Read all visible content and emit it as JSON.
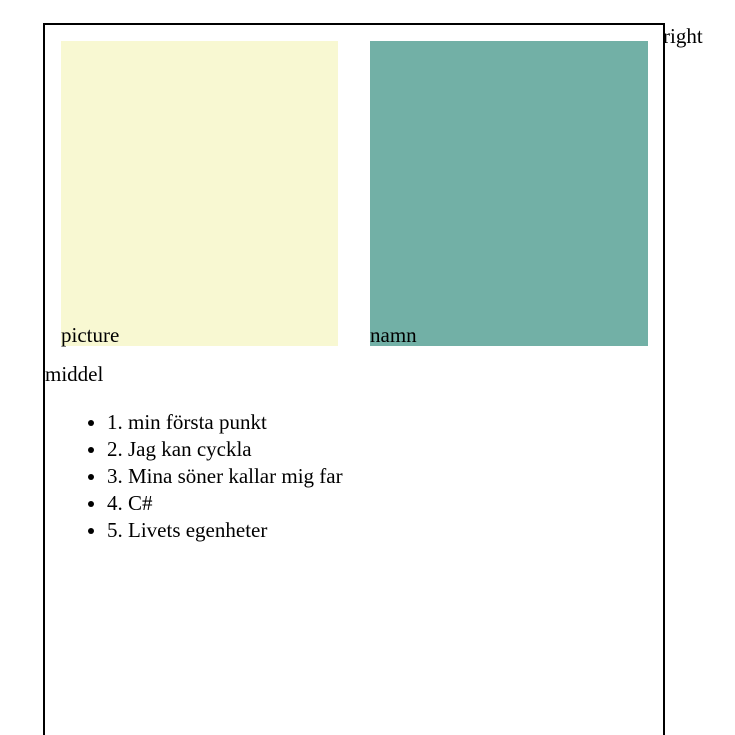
{
  "boxes": {
    "picture_label": "picture",
    "namn_label": "namn"
  },
  "middel_label": "middel",
  "right_label": "right",
  "list_items": [
    "1. min första punkt",
    "2. Jag kan cyckla",
    "3. Mina söner kallar mig far",
    "4. C#",
    "5. Livets egenheter"
  ],
  "colors": {
    "picture_box": "#f8f8d2",
    "namn_box": "#72b0a6",
    "border": "#000000"
  }
}
